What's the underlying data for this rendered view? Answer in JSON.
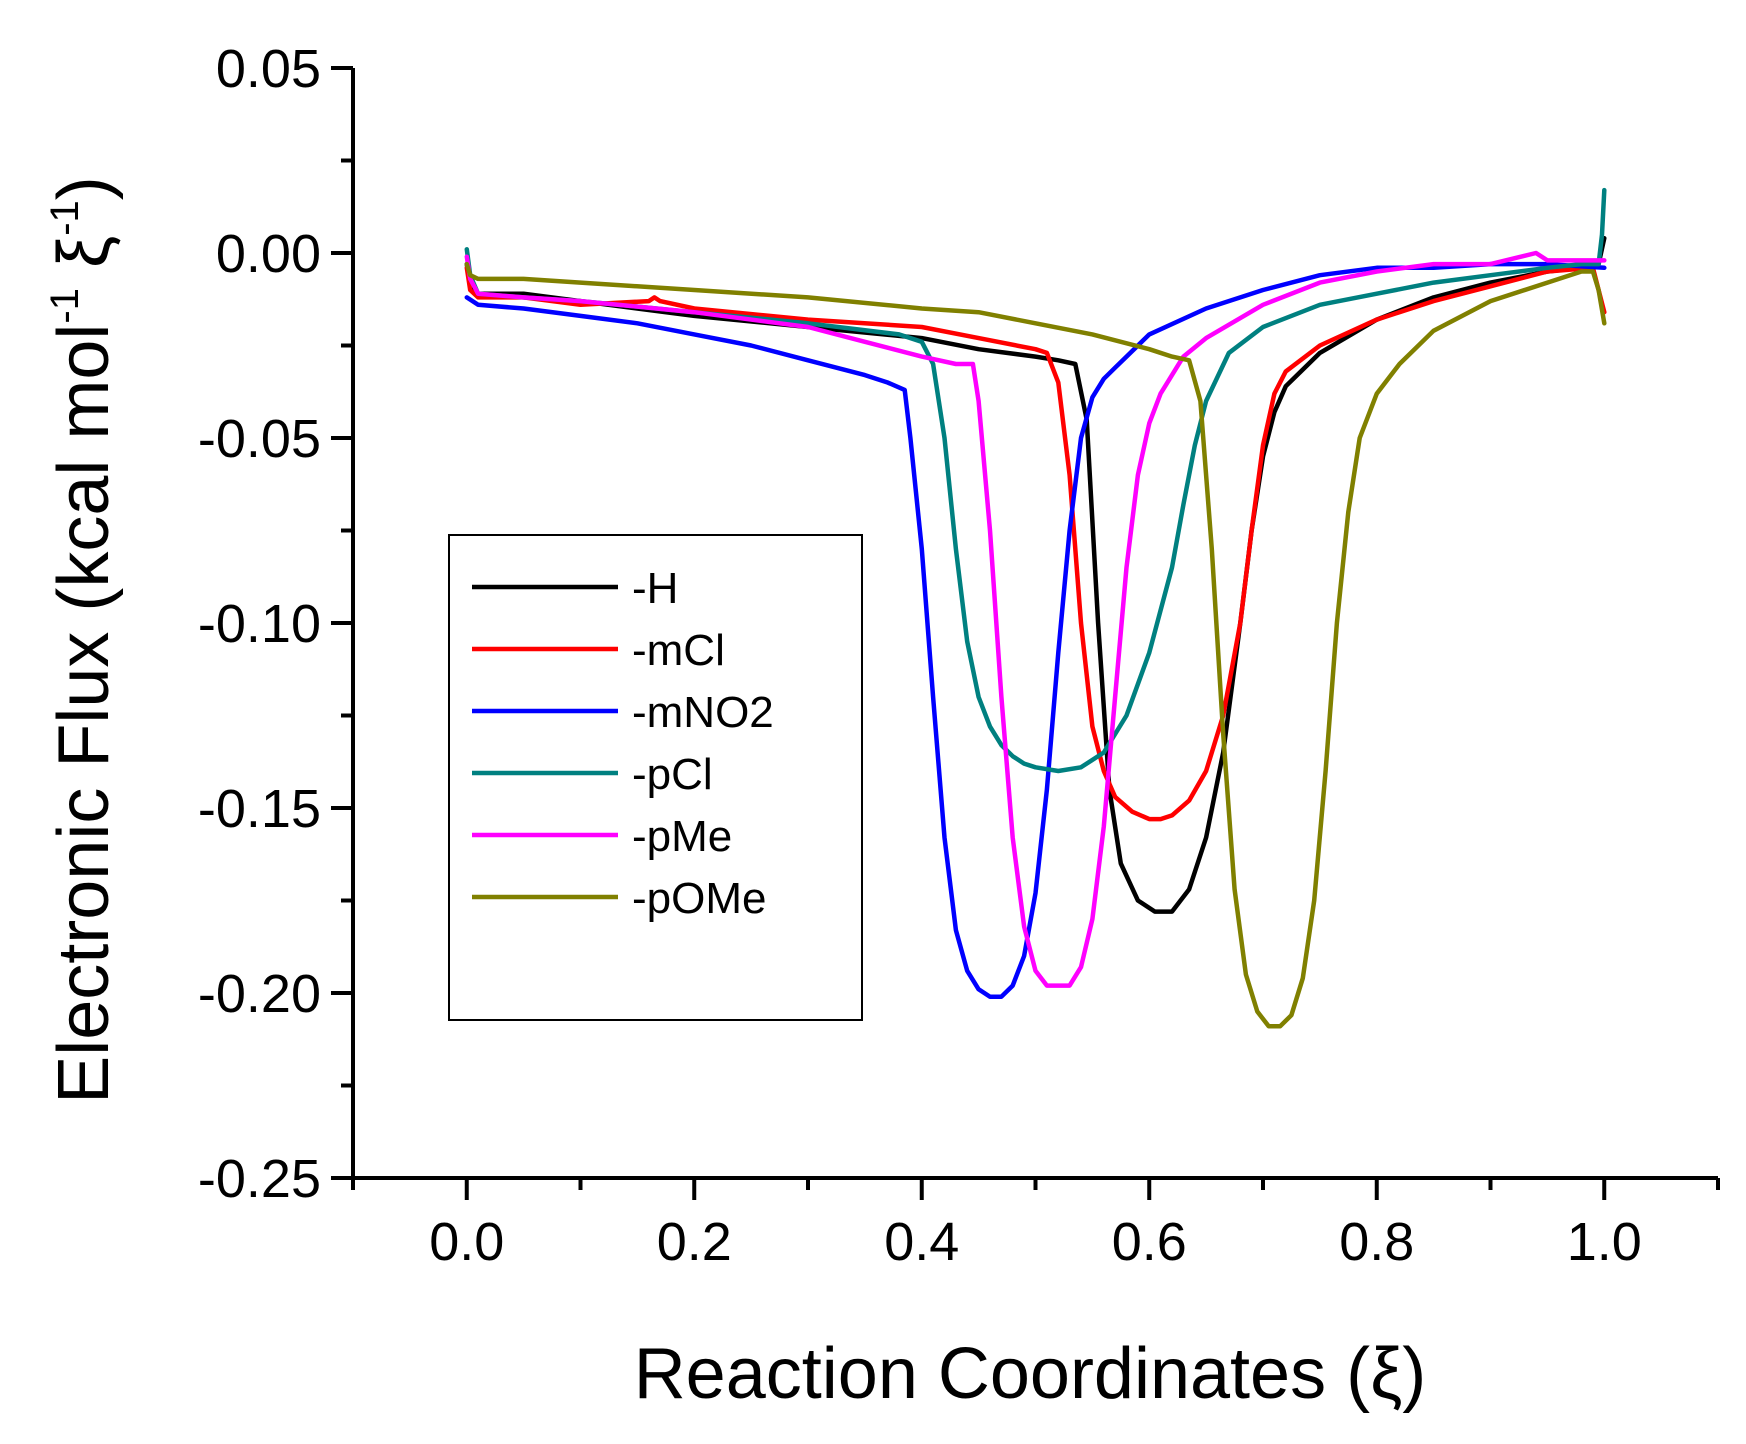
{
  "chart_data": {
    "type": "line",
    "title": "",
    "xlabel": "Reaction Coordinates (ξ)",
    "ylabel_main": "Electronic Flux (kcal mol",
    "ylabel_sup1": "-1",
    "ylabel_mid": " ξ",
    "ylabel_sup2": "-1",
    "ylabel_end": ")",
    "xlim": [
      -0.1,
      1.1
    ],
    "ylim": [
      -0.25,
      0.05
    ],
    "xticks": [
      "0.0",
      "0.2",
      "0.4",
      "0.6",
      "0.8",
      "1.0"
    ],
    "xtick_values": [
      0.0,
      0.2,
      0.4,
      0.6,
      0.8,
      1.0
    ],
    "yticks": [
      "0.05",
      "0.00",
      "-0.05",
      "-0.10",
      "-0.15",
      "-0.20",
      "-0.25"
    ],
    "ytick_values": [
      0.05,
      0.0,
      -0.05,
      -0.1,
      -0.15,
      -0.2,
      -0.25
    ],
    "legend_position": "left-center",
    "series": [
      {
        "name": "-H",
        "color": "#000000",
        "x": [
          0.0,
          0.003,
          0.01,
          0.05,
          0.1,
          0.2,
          0.3,
          0.4,
          0.45,
          0.5,
          0.52,
          0.535,
          0.545,
          0.555,
          0.565,
          0.575,
          0.59,
          0.605,
          0.62,
          0.635,
          0.65,
          0.665,
          0.68,
          0.69,
          0.7,
          0.71,
          0.72,
          0.75,
          0.8,
          0.85,
          0.9,
          0.95,
          0.98,
          0.995,
          1.0
        ],
        "y": [
          -0.003,
          -0.009,
          -0.011,
          -0.011,
          -0.013,
          -0.017,
          -0.02,
          -0.023,
          -0.026,
          -0.028,
          -0.029,
          -0.03,
          -0.045,
          -0.1,
          -0.145,
          -0.165,
          -0.175,
          -0.178,
          -0.178,
          -0.172,
          -0.158,
          -0.135,
          -0.1,
          -0.075,
          -0.055,
          -0.043,
          -0.036,
          -0.027,
          -0.018,
          -0.012,
          -0.008,
          -0.005,
          -0.004,
          -0.003,
          0.004
        ]
      },
      {
        "name": "-mCl",
        "color": "#ff0000",
        "x": [
          0.0,
          0.003,
          0.01,
          0.05,
          0.1,
          0.16,
          0.165,
          0.17,
          0.2,
          0.3,
          0.4,
          0.45,
          0.5,
          0.51,
          0.52,
          0.53,
          0.54,
          0.55,
          0.56,
          0.57,
          0.585,
          0.6,
          0.61,
          0.62,
          0.635,
          0.65,
          0.665,
          0.68,
          0.69,
          0.7,
          0.71,
          0.72,
          0.75,
          0.8,
          0.85,
          0.9,
          0.95,
          0.99,
          1.0
        ],
        "y": [
          -0.004,
          -0.01,
          -0.012,
          -0.012,
          -0.014,
          -0.013,
          -0.012,
          -0.013,
          -0.015,
          -0.018,
          -0.02,
          -0.023,
          -0.026,
          -0.027,
          -0.035,
          -0.06,
          -0.1,
          -0.128,
          -0.14,
          -0.147,
          -0.151,
          -0.153,
          -0.153,
          -0.152,
          -0.148,
          -0.14,
          -0.125,
          -0.1,
          -0.075,
          -0.052,
          -0.038,
          -0.032,
          -0.025,
          -0.018,
          -0.013,
          -0.009,
          -0.005,
          -0.004,
          -0.016
        ]
      },
      {
        "name": "-mNO2",
        "color": "#0000ff",
        "x": [
          0.0,
          0.01,
          0.05,
          0.1,
          0.15,
          0.2,
          0.25,
          0.3,
          0.35,
          0.37,
          0.385,
          0.39,
          0.4,
          0.41,
          0.42,
          0.43,
          0.44,
          0.45,
          0.46,
          0.47,
          0.48,
          0.49,
          0.5,
          0.51,
          0.52,
          0.53,
          0.54,
          0.55,
          0.56,
          0.57,
          0.58,
          0.6,
          0.65,
          0.7,
          0.75,
          0.8,
          0.85,
          0.9,
          0.95,
          1.0
        ],
        "y": [
          -0.012,
          -0.014,
          -0.015,
          -0.017,
          -0.019,
          -0.022,
          -0.025,
          -0.029,
          -0.033,
          -0.035,
          -0.037,
          -0.05,
          -0.08,
          -0.12,
          -0.158,
          -0.183,
          -0.194,
          -0.199,
          -0.201,
          -0.201,
          -0.198,
          -0.19,
          -0.173,
          -0.145,
          -0.108,
          -0.075,
          -0.05,
          -0.039,
          -0.034,
          -0.031,
          -0.028,
          -0.022,
          -0.015,
          -0.01,
          -0.006,
          -0.004,
          -0.004,
          -0.003,
          -0.003,
          -0.004
        ]
      },
      {
        "name": "-pCl",
        "color": "#008080",
        "x": [
          0.0,
          0.003,
          0.01,
          0.05,
          0.1,
          0.2,
          0.3,
          0.38,
          0.4,
          0.41,
          0.42,
          0.43,
          0.44,
          0.45,
          0.46,
          0.47,
          0.48,
          0.49,
          0.5,
          0.52,
          0.54,
          0.56,
          0.58,
          0.6,
          0.62,
          0.63,
          0.64,
          0.65,
          0.67,
          0.7,
          0.75,
          0.8,
          0.85,
          0.9,
          0.95,
          0.98,
          0.995,
          0.998,
          1.0
        ],
        "y": [
          0.001,
          -0.006,
          -0.011,
          -0.012,
          -0.013,
          -0.016,
          -0.019,
          -0.022,
          -0.024,
          -0.03,
          -0.05,
          -0.08,
          -0.105,
          -0.12,
          -0.128,
          -0.133,
          -0.136,
          -0.138,
          -0.139,
          -0.14,
          -0.139,
          -0.135,
          -0.125,
          -0.108,
          -0.085,
          -0.068,
          -0.052,
          -0.04,
          -0.027,
          -0.02,
          -0.014,
          -0.011,
          -0.008,
          -0.006,
          -0.004,
          -0.003,
          -0.003,
          0.005,
          0.017
        ]
      },
      {
        "name": "-pMe",
        "color": "#ff00ff",
        "x": [
          0.0,
          0.003,
          0.01,
          0.05,
          0.1,
          0.2,
          0.3,
          0.35,
          0.4,
          0.43,
          0.445,
          0.45,
          0.46,
          0.47,
          0.48,
          0.49,
          0.5,
          0.51,
          0.52,
          0.53,
          0.54,
          0.55,
          0.56,
          0.57,
          0.58,
          0.59,
          0.6,
          0.61,
          0.62,
          0.63,
          0.65,
          0.7,
          0.75,
          0.8,
          0.85,
          0.9,
          0.94,
          0.95,
          1.0
        ],
        "y": [
          -0.001,
          -0.007,
          -0.011,
          -0.012,
          -0.013,
          -0.016,
          -0.02,
          -0.024,
          -0.028,
          -0.03,
          -0.03,
          -0.04,
          -0.075,
          -0.12,
          -0.158,
          -0.182,
          -0.194,
          -0.198,
          -0.198,
          -0.198,
          -0.193,
          -0.18,
          -0.155,
          -0.12,
          -0.085,
          -0.06,
          -0.046,
          -0.038,
          -0.033,
          -0.028,
          -0.023,
          -0.014,
          -0.008,
          -0.005,
          -0.003,
          -0.003,
          0.0,
          -0.002,
          -0.002
        ]
      },
      {
        "name": "-pOMe",
        "color": "#808000",
        "x": [
          0.0,
          0.003,
          0.01,
          0.05,
          0.1,
          0.2,
          0.3,
          0.4,
          0.45,
          0.5,
          0.55,
          0.6,
          0.62,
          0.635,
          0.645,
          0.655,
          0.665,
          0.675,
          0.685,
          0.695,
          0.705,
          0.715,
          0.725,
          0.735,
          0.745,
          0.755,
          0.765,
          0.775,
          0.785,
          0.8,
          0.82,
          0.85,
          0.9,
          0.95,
          0.98,
          0.99,
          0.995,
          1.0
        ],
        "y": [
          -0.003,
          -0.006,
          -0.007,
          -0.007,
          -0.008,
          -0.01,
          -0.012,
          -0.015,
          -0.016,
          -0.019,
          -0.022,
          -0.026,
          -0.028,
          -0.029,
          -0.04,
          -0.08,
          -0.13,
          -0.172,
          -0.195,
          -0.205,
          -0.209,
          -0.209,
          -0.206,
          -0.196,
          -0.175,
          -0.14,
          -0.1,
          -0.07,
          -0.05,
          -0.038,
          -0.03,
          -0.021,
          -0.013,
          -0.008,
          -0.005,
          -0.005,
          -0.01,
          -0.019
        ]
      }
    ]
  }
}
